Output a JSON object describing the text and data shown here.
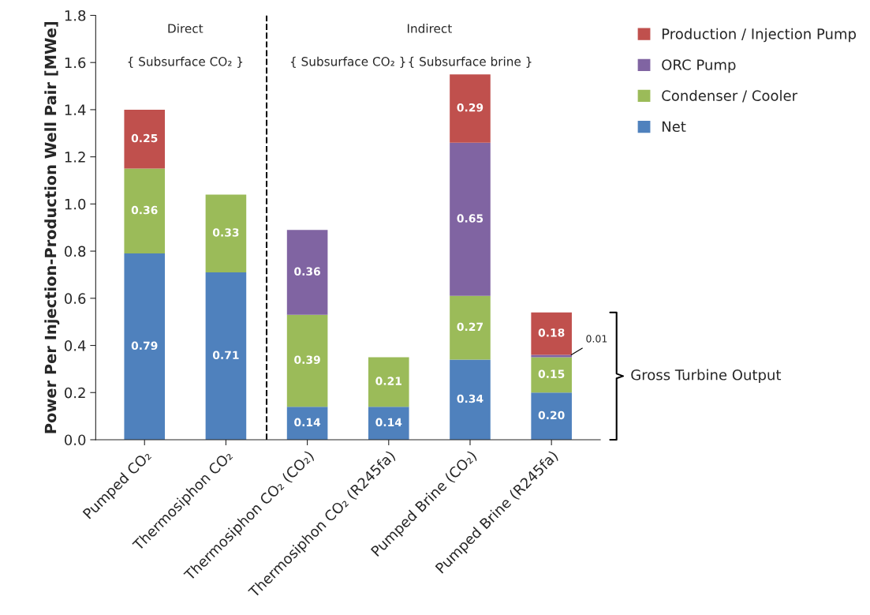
{
  "chart_data": {
    "type": "bar",
    "stacked": true,
    "ylabel": "Power Per Injection-Production Well Pair [MWe]",
    "categories": [
      "Pumped CO₂",
      "Thermosiphon CO₂",
      "Thermosiphon CO₂ (CO₂)",
      "Thermosiphon CO₂ (R245fa)",
      "Pumped Brine (CO₂)",
      "Pumped Brine (R245fa)"
    ],
    "series": [
      {
        "name": "Net",
        "color": "#4f81bd",
        "values": [
          0.79,
          0.71,
          0.14,
          0.14,
          0.34,
          0.2
        ],
        "value_labels": [
          "0.79",
          "0.71",
          "0.14",
          "0.14",
          "0.34",
          "0.20"
        ]
      },
      {
        "name": "Condenser / Cooler",
        "color": "#9bbb59",
        "values": [
          0.36,
          0.33,
          0.39,
          0.21,
          0.27,
          0.15
        ],
        "value_labels": [
          "0.36",
          "0.33",
          "0.39",
          "0.21",
          "0.27",
          "0.15"
        ]
      },
      {
        "name": "ORC Pump",
        "color": "#8064a2",
        "values": [
          null,
          null,
          0.36,
          null,
          0.65,
          0.01
        ],
        "value_labels": [
          null,
          null,
          "0.36",
          null,
          "0.65",
          "0.01"
        ]
      },
      {
        "name": "Production / Injection Pump",
        "color": "#c0504d",
        "values": [
          0.25,
          null,
          null,
          null,
          0.29,
          0.18
        ],
        "value_labels": [
          "0.25",
          null,
          null,
          null,
          "0.29",
          "0.18"
        ]
      }
    ],
    "ylim": [
      0,
      1.8
    ],
    "yticks": [
      {
        "value": 0,
        "label": "0.0"
      },
      0.2,
      0.4,
      0.6,
      0.8,
      {
        "value": 1,
        "label": "1.0"
      },
      1.2,
      1.4,
      1.6,
      1.8
    ],
    "annotations": [
      "Direct",
      "Indirect",
      "{ Subsurface CO₂ }",
      "{ Subsurface CO₂ }",
      "{ Subsurface brine }",
      "Gross Turbine Output"
    ],
    "legend": "top right",
    "grid": false
  }
}
